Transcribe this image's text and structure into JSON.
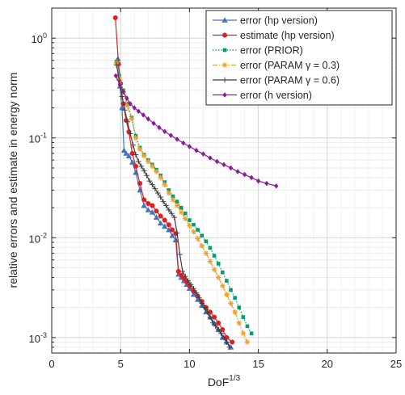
{
  "chart_data": {
    "type": "line",
    "title": "",
    "xlabel": "DoF",
    "xlabel_superscript": "1/3",
    "ylabel": "relative errors and estimate in energy norm",
    "xlim": [
      0,
      25
    ],
    "ylim": [
      0.0007,
      2
    ],
    "yscale": "log",
    "grid": true,
    "minor_grid": true,
    "legend_position": "top-right",
    "xticks": [
      0,
      5,
      10,
      15,
      20,
      25
    ],
    "xtick_labels": [
      "0",
      "5",
      "10",
      "15",
      "20",
      "25"
    ],
    "yticks": [
      0.001,
      0.01,
      0.1,
      1
    ],
    "ytick_labels": [
      {
        "base": "10",
        "exp": "-3"
      },
      {
        "base": "10",
        "exp": "-2"
      },
      {
        "base": "10",
        "exp": "-1"
      },
      {
        "base": "10",
        "exp": "0"
      }
    ],
    "series": [
      {
        "name": "error (hp version)",
        "color": "#4472C4",
        "marker": "triangle",
        "line": "solid",
        "x": [
          4.8,
          4.95,
          5.1,
          5.25,
          5.4,
          5.6,
          5.85,
          6.1,
          6.4,
          6.7,
          7.0,
          7.3,
          7.6,
          7.9,
          8.2,
          8.5,
          8.75,
          9.0,
          9.2,
          9.4,
          9.6,
          9.8,
          10.0,
          10.3,
          10.6,
          10.9,
          11.2,
          11.5,
          11.8,
          12.1,
          12.4,
          12.7,
          13.0
        ],
        "y": [
          0.62,
          0.33,
          0.2,
          0.075,
          0.07,
          0.066,
          0.057,
          0.045,
          0.03,
          0.021,
          0.019,
          0.018,
          0.016,
          0.014,
          0.013,
          0.012,
          0.0105,
          0.0095,
          0.0043,
          0.004,
          0.0037,
          0.0034,
          0.0031,
          0.0027,
          0.0024,
          0.0021,
          0.0018,
          0.0016,
          0.0014,
          0.0012,
          0.001,
          0.0009,
          0.0008
        ]
      },
      {
        "name": "estimate (hp version)",
        "color": "#E02020",
        "marker": "circle",
        "line": "solid",
        "x": [
          4.62,
          4.85,
          5.0,
          5.2,
          5.4,
          5.6,
          5.85,
          6.1,
          6.4,
          6.7,
          7.0,
          7.3,
          7.6,
          7.9,
          8.2,
          8.5,
          8.75,
          9.0,
          9.2,
          9.4,
          9.6,
          9.8,
          10.0,
          10.3,
          10.6,
          10.9,
          11.2,
          11.5,
          11.8,
          12.1,
          12.4,
          12.7,
          13.1
        ],
        "y": [
          1.6,
          0.55,
          0.35,
          0.22,
          0.15,
          0.115,
          0.07,
          0.052,
          0.035,
          0.024,
          0.022,
          0.021,
          0.0185,
          0.0165,
          0.015,
          0.0135,
          0.012,
          0.011,
          0.0046,
          0.0042,
          0.0039,
          0.0036,
          0.0033,
          0.0029,
          0.0026,
          0.0023,
          0.002,
          0.0018,
          0.0016,
          0.0014,
          0.0012,
          0.001,
          0.0009
        ]
      },
      {
        "name": "error (PRIOR)",
        "color": "#00A06E",
        "marker": "square",
        "line": "dotted",
        "x": [
          4.7,
          4.9,
          5.2,
          5.5,
          5.8,
          6.1,
          6.4,
          6.7,
          7.0,
          7.3,
          7.6,
          7.9,
          8.2,
          8.5,
          8.8,
          9.1,
          9.4,
          9.7,
          10.0,
          10.3,
          10.6,
          10.9,
          11.2,
          11.5,
          11.8,
          12.1,
          12.4,
          12.7,
          13.0,
          13.3,
          13.6,
          13.9,
          14.2,
          14.5
        ],
        "y": [
          0.58,
          0.42,
          0.3,
          0.22,
          0.16,
          0.105,
          0.08,
          0.068,
          0.06,
          0.054,
          0.048,
          0.042,
          0.036,
          0.03,
          0.026,
          0.023,
          0.02,
          0.0175,
          0.015,
          0.0135,
          0.012,
          0.0105,
          0.0092,
          0.0079,
          0.0066,
          0.0055,
          0.0045,
          0.0037,
          0.003,
          0.0025,
          0.002,
          0.0016,
          0.0013,
          0.0011
        ]
      },
      {
        "name": "error (PARAM γ = 0.3)",
        "color": "#F0A030",
        "marker": "asterisk",
        "line": "dashdot",
        "x": [
          4.7,
          4.9,
          5.2,
          5.5,
          5.8,
          6.1,
          6.4,
          6.7,
          7.0,
          7.3,
          7.6,
          7.9,
          8.2,
          8.5,
          8.8,
          9.1,
          9.4,
          9.7,
          10.0,
          10.3,
          10.6,
          10.9,
          11.2,
          11.5,
          11.8,
          12.1,
          12.4,
          12.7,
          13.0,
          13.3,
          13.6,
          13.9,
          14.2
        ],
        "y": [
          0.56,
          0.4,
          0.29,
          0.21,
          0.155,
          0.1,
          0.077,
          0.066,
          0.058,
          0.052,
          0.046,
          0.04,
          0.034,
          0.028,
          0.024,
          0.021,
          0.018,
          0.0155,
          0.0132,
          0.0115,
          0.0098,
          0.0083,
          0.007,
          0.0058,
          0.0048,
          0.004,
          0.0033,
          0.0027,
          0.0022,
          0.0018,
          0.0014,
          0.0011,
          0.0009
        ]
      },
      {
        "name": "error (PARAM γ = 0.6)",
        "color": "#404040",
        "marker": "plus",
        "line": "solid",
        "x": [
          4.7,
          4.9,
          5.1,
          5.3,
          5.5,
          5.7,
          5.9,
          6.1,
          6.3,
          6.5,
          6.7,
          6.9,
          7.1,
          7.3,
          7.5,
          7.7,
          7.9,
          8.1,
          8.3,
          8.5,
          8.7,
          8.9,
          9.1,
          9.3,
          9.5,
          9.7,
          9.9,
          10.1,
          10.3,
          10.5,
          10.7,
          10.9,
          11.1,
          11.3,
          11.5,
          11.7,
          11.9,
          12.1,
          12.3,
          12.5,
          12.7,
          12.9
        ],
        "y": [
          0.54,
          0.38,
          0.26,
          0.19,
          0.145,
          0.11,
          0.085,
          0.068,
          0.058,
          0.052,
          0.047,
          0.042,
          0.037,
          0.034,
          0.031,
          0.028,
          0.0255,
          0.023,
          0.021,
          0.019,
          0.0175,
          0.016,
          0.0112,
          0.0068,
          0.0046,
          0.0041,
          0.0037,
          0.0034,
          0.0031,
          0.0028,
          0.0025,
          0.0022,
          0.002,
          0.0018,
          0.0016,
          0.0014,
          0.0013,
          0.0012,
          0.0011,
          0.001,
          0.0009,
          0.0008
        ]
      },
      {
        "name": "error (h version)",
        "color": "#8B1A9A",
        "marker": "diamond",
        "line": "solid",
        "x": [
          4.65,
          4.95,
          5.2,
          5.45,
          5.7,
          6.0,
          6.3,
          6.65,
          7.0,
          7.4,
          7.8,
          8.2,
          8.65,
          9.1,
          9.55,
          10.0,
          10.5,
          11.0,
          11.5,
          12.0,
          12.5,
          13.0,
          13.5,
          14.0,
          14.5,
          15.0,
          15.6,
          16.3
        ],
        "y": [
          0.42,
          0.34,
          0.29,
          0.25,
          0.22,
          0.2,
          0.185,
          0.17,
          0.155,
          0.14,
          0.127,
          0.116,
          0.106,
          0.097,
          0.089,
          0.082,
          0.075,
          0.069,
          0.063,
          0.058,
          0.054,
          0.05,
          0.046,
          0.043,
          0.04,
          0.037,
          0.035,
          0.033
        ]
      }
    ]
  }
}
